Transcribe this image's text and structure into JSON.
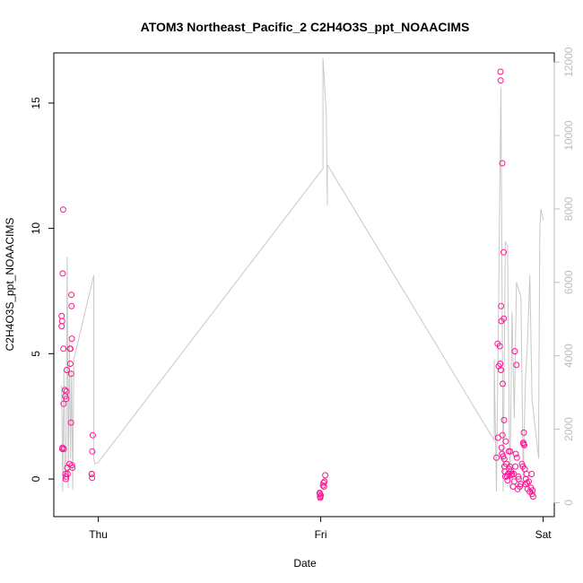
{
  "chart_data": {
    "type": "scatter",
    "title": "ATOM3 Northeast_Pacific_2 C2H4O3S_ppt_NOAACIMS",
    "xlabel": "Date",
    "ylabel": "C2H4O3S_ppt_NOAACIMS",
    "x_ticks": [
      {
        "value": 0,
        "label": "Thu"
      },
      {
        "value": 1,
        "label": "Fri"
      },
      {
        "value": 2,
        "label": "Sat"
      }
    ],
    "y_ticks": [
      0,
      5,
      10,
      15
    ],
    "y2_ticks": [
      0,
      2000,
      4000,
      6000,
      8000,
      10000,
      12000
    ],
    "xlim": [
      -0.2,
      2.05
    ],
    "ylim": [
      -1.5,
      17.0
    ],
    "y2lim": [
      -380,
      12250
    ],
    "grid": false,
    "series": [
      {
        "type": "scatter",
        "color": "#ff1493",
        "axis": "left",
        "points": [
          [
            -0.165,
            6.5
          ],
          [
            -0.165,
            6.1
          ],
          [
            -0.163,
            6.3
          ],
          [
            -0.162,
            1.2
          ],
          [
            -0.161,
            1.25
          ],
          [
            -0.16,
            8.2
          ],
          [
            -0.158,
            10.75
          ],
          [
            -0.157,
            5.2
          ],
          [
            -0.156,
            3.0
          ],
          [
            -0.155,
            1.2
          ],
          [
            -0.15,
            3.55
          ],
          [
            -0.149,
            3.3
          ],
          [
            -0.147,
            0.2
          ],
          [
            -0.146,
            0.0
          ],
          [
            -0.145,
            0.1
          ],
          [
            -0.144,
            3.2
          ],
          [
            -0.143,
            3.5
          ],
          [
            -0.142,
            4.35
          ],
          [
            -0.14,
            0.45
          ],
          [
            -0.138,
            0.2
          ],
          [
            -0.13,
            0.6
          ],
          [
            -0.127,
            5.2
          ],
          [
            -0.126,
            4.6
          ],
          [
            -0.125,
            5.2
          ],
          [
            -0.123,
            2.25
          ],
          [
            -0.122,
            4.2
          ],
          [
            -0.121,
            7.35
          ],
          [
            -0.12,
            6.9
          ],
          [
            -0.119,
            5.6
          ],
          [
            -0.118,
            0.55
          ],
          [
            -0.116,
            0.45
          ],
          [
            -0.03,
            0.2
          ],
          [
            -0.029,
            0.2
          ],
          [
            -0.028,
            0.05
          ],
          [
            -0.027,
            1.1
          ],
          [
            -0.025,
            1.75
          ],
          [
            0.995,
            -0.55
          ],
          [
            0.996,
            -0.6
          ],
          [
            0.997,
            -0.7
          ],
          [
            0.998,
            -0.75
          ],
          [
            1.0,
            -0.65
          ],
          [
            1.01,
            -0.25
          ],
          [
            1.012,
            -0.15
          ],
          [
            1.015,
            -0.3
          ],
          [
            1.017,
            -0.1
          ],
          [
            1.02,
            0.15
          ],
          [
            1.79,
            0.85
          ],
          [
            1.795,
            5.4
          ],
          [
            1.797,
            1.65
          ],
          [
            1.8,
            4.5
          ],
          [
            1.805,
            5.3
          ],
          [
            1.807,
            4.6
          ],
          [
            1.808,
            16.25
          ],
          [
            1.809,
            15.9
          ],
          [
            1.81,
            4.35
          ],
          [
            1.811,
            6.9
          ],
          [
            1.812,
            6.3
          ],
          [
            1.813,
            1.25
          ],
          [
            1.815,
            1.0
          ],
          [
            1.816,
            12.6
          ],
          [
            1.817,
            1.75
          ],
          [
            1.818,
            3.8
          ],
          [
            1.82,
            0.9
          ],
          [
            1.822,
            9.05
          ],
          [
            1.823,
            6.4
          ],
          [
            1.824,
            2.35
          ],
          [
            1.825,
            0.8
          ],
          [
            1.826,
            0.5
          ],
          [
            1.827,
            0.3
          ],
          [
            1.83,
            0.1
          ],
          [
            1.832,
            1.5
          ],
          [
            1.835,
            0.6
          ],
          [
            1.838,
            0.1
          ],
          [
            1.84,
            -0.05
          ],
          [
            1.842,
            0.2
          ],
          [
            1.845,
            1.1
          ],
          [
            1.847,
            0.4
          ],
          [
            1.85,
            0.5
          ],
          [
            1.852,
            1.1
          ],
          [
            1.855,
            0.3
          ],
          [
            1.857,
            0.15
          ],
          [
            1.86,
            0.2
          ],
          [
            1.865,
            -0.3
          ],
          [
            1.868,
            0.2
          ],
          [
            1.87,
            -0.1
          ],
          [
            1.872,
            5.1
          ],
          [
            1.875,
            0.5
          ],
          [
            1.877,
            1.0
          ],
          [
            1.88,
            4.55
          ],
          [
            1.882,
            0.85
          ],
          [
            1.885,
            -0.4
          ],
          [
            1.888,
            0.1
          ],
          [
            1.89,
            0.0
          ],
          [
            1.895,
            -0.3
          ],
          [
            1.9,
            -0.2
          ],
          [
            1.905,
            0.6
          ],
          [
            1.908,
            0.5
          ],
          [
            1.91,
            1.45
          ],
          [
            1.912,
            1.4
          ],
          [
            1.913,
            1.85
          ],
          [
            1.915,
            1.35
          ],
          [
            1.917,
            0.4
          ],
          [
            1.92,
            -0.2
          ],
          [
            1.922,
            0.0
          ],
          [
            1.925,
            0.2
          ],
          [
            1.928,
            -0.15
          ],
          [
            1.93,
            -0.4
          ],
          [
            1.935,
            -0.1
          ],
          [
            1.94,
            -0.5
          ],
          [
            1.945,
            -0.35
          ],
          [
            1.948,
            0.2
          ],
          [
            1.95,
            -0.6
          ],
          [
            1.952,
            -0.45
          ],
          [
            1.955,
            -0.7
          ]
        ]
      },
      {
        "type": "line",
        "color": "#c8c8c8",
        "axis": "right",
        "points": [
          [
            -0.165,
            3200
          ],
          [
            -0.16,
            300
          ],
          [
            -0.155,
            3600
          ],
          [
            -0.15,
            600
          ],
          [
            -0.145,
            1200
          ],
          [
            -0.14,
            6700
          ],
          [
            -0.135,
            400
          ],
          [
            -0.13,
            4400
          ],
          [
            -0.125,
            1200
          ],
          [
            -0.12,
            3600
          ],
          [
            -0.115,
            350
          ],
          [
            -0.11,
            3900
          ],
          [
            -0.02,
            6200
          ],
          [
            -0.02,
            1200
          ],
          [
            -0.015,
            1050
          ],
          [
            0.0,
            1100
          ],
          [
            1.01,
            9100
          ],
          [
            1.01,
            12100
          ],
          [
            1.025,
            10600
          ],
          [
            1.03,
            8100
          ],
          [
            1.03,
            9200
          ],
          [
            1.78,
            1700
          ],
          [
            1.78,
            3900
          ],
          [
            1.79,
            300
          ],
          [
            1.8,
            5700
          ],
          [
            1.81,
            11300
          ],
          [
            1.82,
            300
          ],
          [
            1.83,
            7100
          ],
          [
            1.84,
            7000
          ],
          [
            1.85,
            400
          ],
          [
            1.86,
            5200
          ],
          [
            1.87,
            2300
          ],
          [
            1.88,
            6000
          ],
          [
            1.9,
            5600
          ],
          [
            1.91,
            700
          ],
          [
            1.92,
            3300
          ],
          [
            1.93,
            4400
          ],
          [
            1.94,
            6200
          ],
          [
            1.95,
            2800
          ],
          [
            1.98,
            1200
          ],
          [
            1.98,
            2300
          ],
          [
            1.985,
            7500
          ],
          [
            1.99,
            8000
          ],
          [
            2.0,
            7700
          ]
        ]
      }
    ]
  }
}
